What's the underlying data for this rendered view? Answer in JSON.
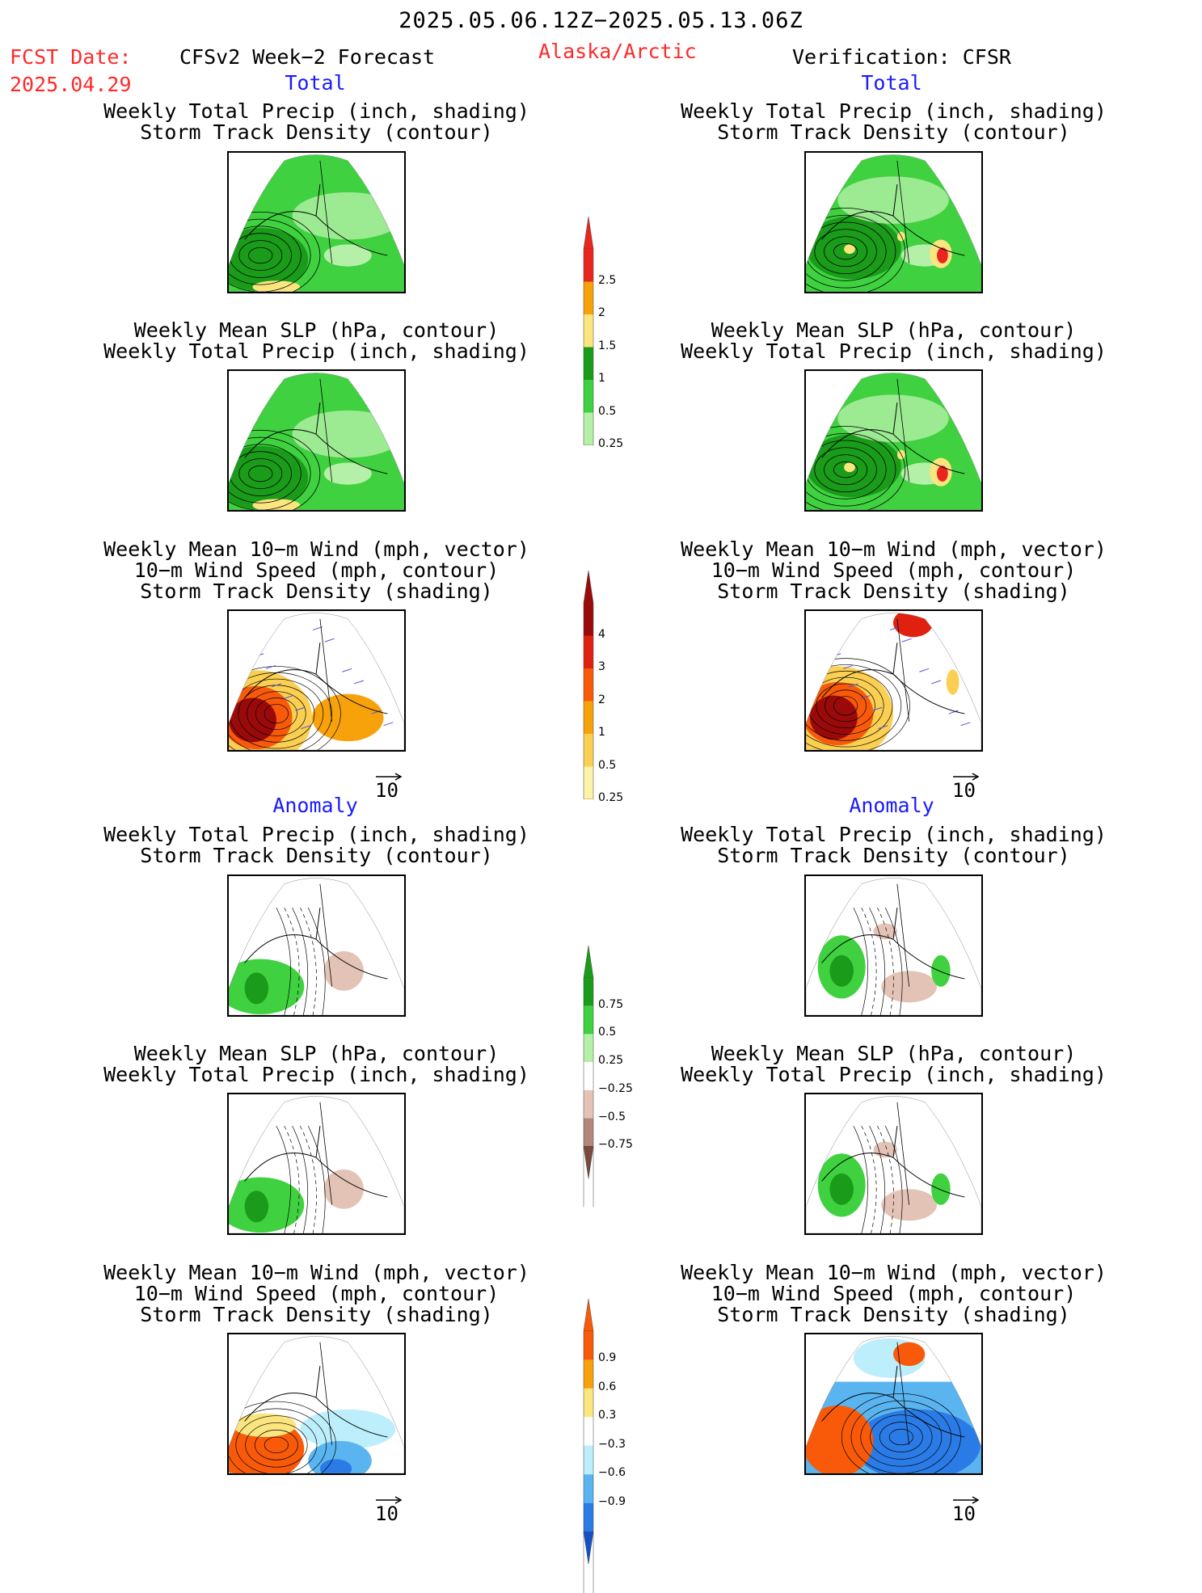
{
  "header": {
    "title": "2025.05.06.12Z−2025.05.13.06Z",
    "fcst_label": "FCST Date:",
    "fcst_date": "2025.04.29",
    "forecast_title": "CFSv2 Week−2 Forecast",
    "region": "Alaska/Arctic",
    "verification": "Verification: CFSR"
  },
  "sections": {
    "total": "Total",
    "anomaly": "Anomaly"
  },
  "panel_titles": {
    "precip_storm": [
      "Weekly Total Precip (inch, shading)",
      "Storm Track Density (contour)"
    ],
    "slp_precip": [
      "Weekly Mean SLP (hPa, contour)",
      "Weekly Total Precip (inch, shading)"
    ],
    "wind_storm": [
      "Weekly Mean 10−m Wind (mph, vector)",
      "10−m Wind Speed (mph, contour)",
      "Storm Track Density (shading)"
    ]
  },
  "vector_ref": "10",
  "colorbars": [
    {
      "name": "total-precip",
      "labels": [
        "2.5",
        "2",
        "1.5",
        "1",
        "0.5",
        "0.25"
      ],
      "colors": [
        "#e8261e",
        "#f7a20a",
        "#fbe57f",
        "#1a9c1a",
        "#3fd13f",
        "#b4f0a8"
      ],
      "tail_top": true,
      "tail_bottom_white": true
    },
    {
      "name": "total-storm",
      "labels": [
        "4",
        "3",
        "2",
        "1",
        "0.5",
        "0.25"
      ],
      "colors": [
        "#9a0a0a",
        "#e0210f",
        "#f85a0a",
        "#f7a20a",
        "#fbcf52",
        "#fdf3a8"
      ],
      "tail_top": true,
      "tail_bottom_white": true
    },
    {
      "name": "anom-precip",
      "labels": [
        "0.75",
        "0.5",
        "0.25",
        "−0.25",
        "−0.5",
        "−0.75"
      ],
      "colors": [
        "#1a9c1a",
        "#3fd13f",
        "#b4f0a8",
        "#ffffff",
        "#e3c3b6",
        "#b3877a",
        "#7a4a3e"
      ],
      "tail_top": true,
      "tail_bottom": true
    },
    {
      "name": "anom-storm",
      "labels": [
        "0.9",
        "0.6",
        "0.3",
        "−0.3",
        "−0.6",
        "−0.9"
      ],
      "colors": [
        "#f85a0a",
        "#f7a20a",
        "#fbe57f",
        "#ffffff",
        "#bdeefb",
        "#5ab4f0",
        "#2a7be6",
        "#1450c8"
      ],
      "tail_top": true,
      "tail_bottom": true
    }
  ],
  "colors": {
    "green_dark": "#1a9c1a",
    "green_mid": "#3fd13f",
    "green_light": "#b4f0a8",
    "brown_light": "#e3c3b6",
    "storm_dark": "#9a0a0a",
    "storm_orange": "#f7a20a",
    "blue_dark": "#2a7be6",
    "blue_light": "#bdeefb"
  }
}
